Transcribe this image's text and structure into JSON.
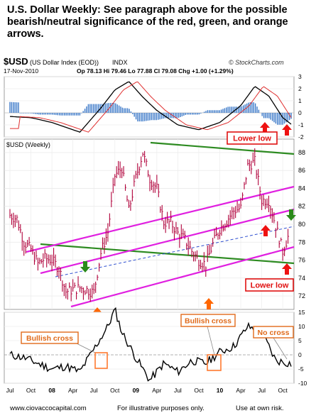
{
  "headline": "U.S. Dollar Weekly:  See paragraph above for the possible bearish/neutral significance of the red, green, and orange arrows.",
  "header": {
    "symbol": "$USD",
    "name": "(US Dollar Index (EOD))",
    "exchange": "INDX",
    "date": "17-Nov-2010",
    "ohlc": "Op 78.13  Hi 79.46  Lo 77.88  Cl 79.08  Chg +1.00 (+1.29%)",
    "watermark": "© StockCharts.com",
    "price_panel_label": "$USD (Weekly)"
  },
  "colors": {
    "price": "#b0003a",
    "resistance": "#2e8b22",
    "channel": "#e020e0",
    "midline": "#3050d0",
    "macd": "#000000",
    "signal": "#e03030",
    "histogram": "#3a78c8",
    "up_arrow": "#ff6600",
    "down_arrow": "#2a8a1a",
    "red_arrow": "#ee1111",
    "box": "#ff7a30"
  },
  "annotations": {
    "lower_low_top": "Lower low",
    "lower_low_bottom": "Lower low",
    "bullish_cross_1": "Bullish cross",
    "bullish_cross_2": "Bullish cross",
    "no_cross": "No cross"
  },
  "footer": {
    "site": "www.ciovaccocapital.com",
    "note": "For illustrative purposes only.",
    "risk": "Use at own risk."
  },
  "chart_data": [
    {
      "type": "line",
      "panel": "macd",
      "ylim": [
        -2,
        3
      ],
      "yticks": [
        3,
        2,
        1,
        0,
        -1,
        -2
      ],
      "series": [],
      "histogram": true
    },
    {
      "type": "line",
      "panel": "price",
      "ylabel": "",
      "ylim": [
        70.5,
        89.5
      ],
      "yticks": [
        88,
        86,
        84,
        82,
        80,
        78,
        76,
        74,
        72
      ],
      "x_tick_labels": [
        "Jul",
        "Oct",
        "08",
        "Apr",
        "Jul",
        "Oct",
        "09",
        "Apr",
        "Jul",
        "Oct",
        "10",
        "Apr",
        "Jul",
        "Oct"
      ],
      "x_dates": [
        "2007-07",
        "2007-10",
        "2008-01",
        "2008-04",
        "2008-07",
        "2008-10",
        "2009-01",
        "2009-04",
        "2009-07",
        "2009-10",
        "2010-01",
        "2010-04",
        "2010-07",
        "2010-10"
      ],
      "series": [
        {
          "x": [
            "2007-07",
            "2007-08",
            "2007-09",
            "2007-10",
            "2007-11",
            "2007-12",
            "2008-01",
            "2008-02",
            "2008-03",
            "2008-04",
            "2008-05",
            "2008-06",
            "2008-07",
            "2008-08",
            "2008-09",
            "2008-10",
            "2008-11",
            "2008-12",
            "2009-01",
            "2009-02",
            "2009-03",
            "2009-04",
            "2009-05",
            "2009-06",
            "2009-07",
            "2009-08",
            "2009-09",
            "2009-10",
            "2009-11",
            "2009-12",
            "2010-01",
            "2010-02",
            "2010-03",
            "2010-04",
            "2010-05",
            "2010-06",
            "2010-07",
            "2010-08",
            "2010-09",
            "2010-10",
            "2010-11"
          ],
          "values": [
            81.0,
            80.6,
            78.0,
            77.2,
            75.6,
            76.2,
            76.0,
            75.1,
            72.5,
            72.7,
            72.9,
            72.7,
            72.4,
            76.8,
            79.1,
            85.4,
            86.3,
            81.5,
            85.2,
            88.0,
            85.1,
            84.0,
            80.2,
            80.2,
            79.0,
            78.3,
            77.0,
            76.0,
            75.5,
            77.8,
            79.5,
            80.4,
            81.5,
            81.8,
            86.5,
            87.0,
            82.7,
            82.7,
            79.8,
            77.0,
            79.1
          ]
        }
      ]
    },
    {
      "type": "line",
      "panel": "oscillator",
      "ylim": [
        -10,
        15
      ],
      "yticks": [
        15,
        10,
        5,
        0,
        -5,
        -10
      ],
      "series": []
    }
  ]
}
